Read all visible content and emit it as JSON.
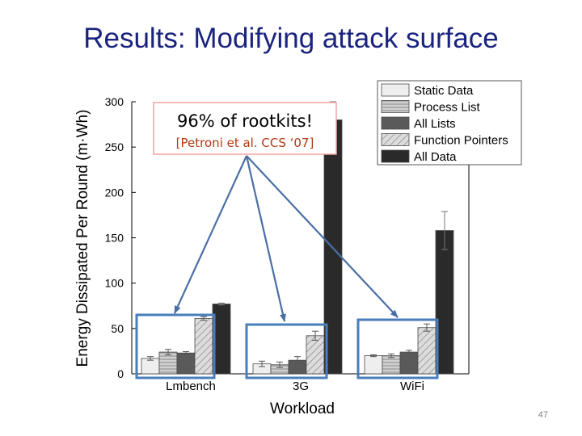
{
  "slide": {
    "title": "Results: Modifying attack surface",
    "page_number": "47"
  },
  "callout": {
    "headline": "96% of rootkits!",
    "citation": "[Petroni et al. CCS ‘07]"
  },
  "colors": {
    "title": "#1a237e",
    "callout_text": "#b03a10",
    "callout_border": "#f4a3a3",
    "highlight_box": "#4a7ebb",
    "arrow": "#4a6fa5"
  },
  "chart_data": {
    "type": "bar",
    "ylabel": "Energy Dissipated Per Round (m·Wh)",
    "xlabel": "Workload",
    "ylim": [
      0,
      300
    ],
    "yticks": [
      0,
      50,
      100,
      150,
      200,
      250,
      300
    ],
    "categories": [
      "Lmbench",
      "3G",
      "WiFi"
    ],
    "legend_position": "top-right",
    "series": [
      {
        "name": "Static Data",
        "values": [
          17,
          11,
          20
        ],
        "errors": [
          2,
          3,
          1
        ],
        "color": "#eeeeee",
        "pattern": "solid"
      },
      {
        "name": "Process List",
        "values": [
          24,
          10,
          20
        ],
        "errors": [
          3,
          3,
          2
        ],
        "color": "#b8b8b8",
        "pattern": "horizontal-lines"
      },
      {
        "name": "All Lists",
        "values": [
          23,
          15,
          24
        ],
        "errors": [
          1.5,
          4,
          2
        ],
        "color": "#5a5a5a",
        "pattern": "solid"
      },
      {
        "name": "Function Pointers",
        "values": [
          61,
          42,
          51
        ],
        "errors": [
          2,
          5,
          4
        ],
        "color": "#d2d2d2",
        "pattern": "diagonal-hatch"
      },
      {
        "name": "All Data",
        "values": [
          77,
          280,
          158
        ],
        "errors": [
          1,
          20,
          21
        ],
        "color": "#2a2a2a",
        "pattern": "solid"
      }
    ]
  }
}
